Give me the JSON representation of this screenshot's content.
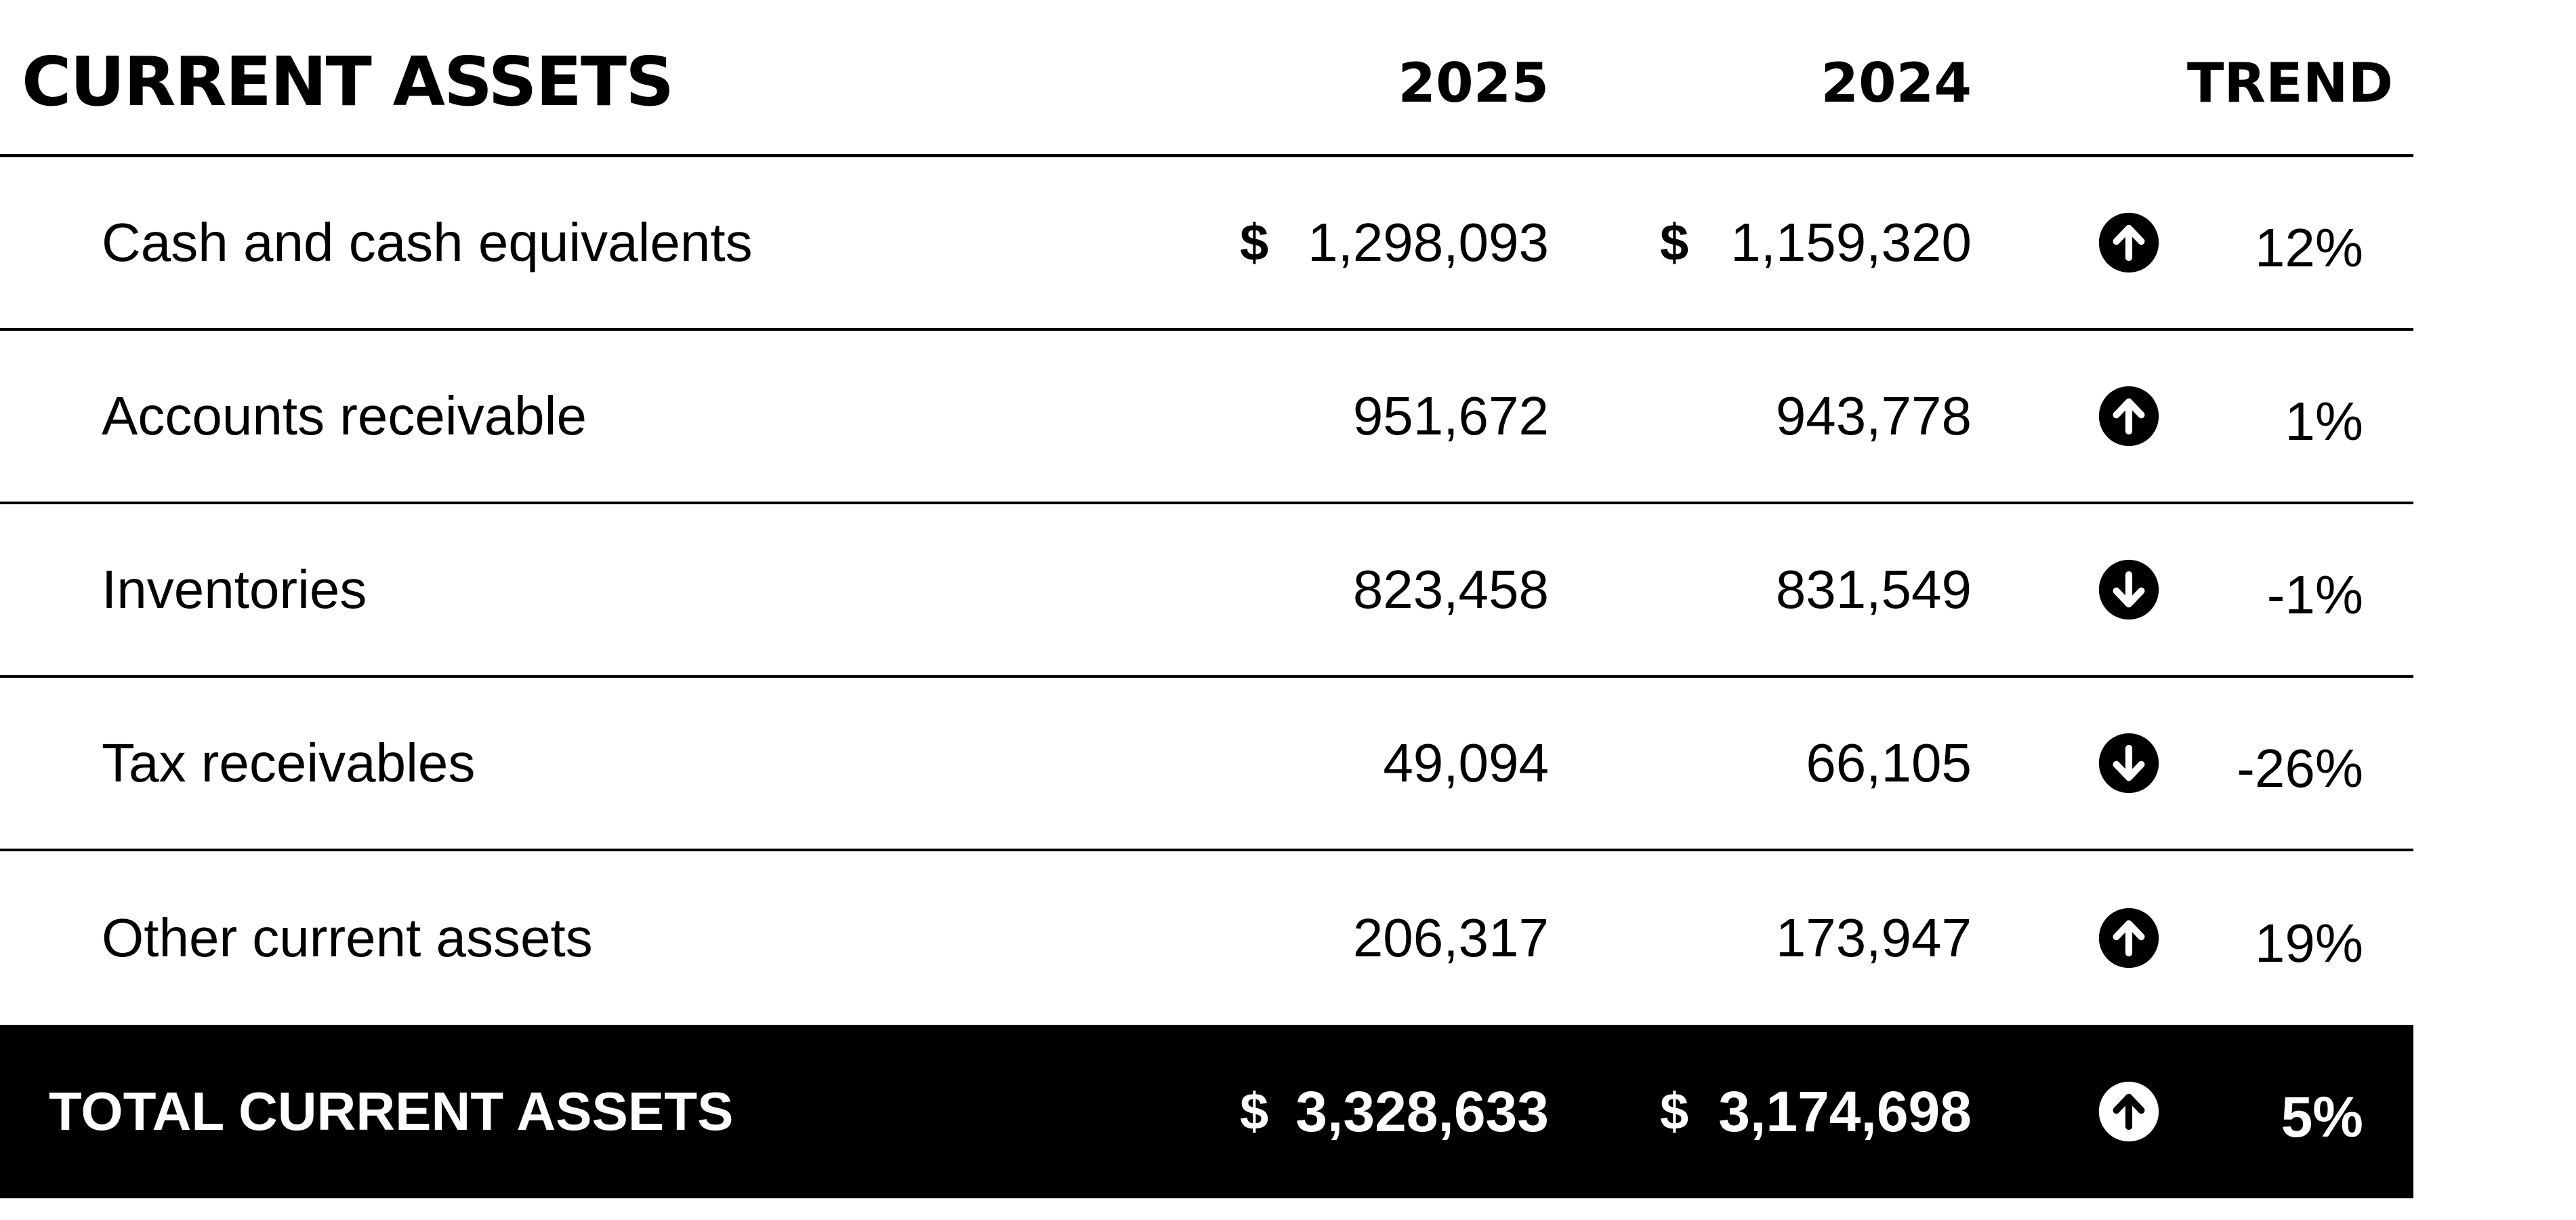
{
  "header": {
    "title": "CURRENT ASSETS",
    "col_2025": "2025",
    "col_2024": "2024",
    "col_trend": "TREND"
  },
  "rows": [
    {
      "label": "Cash and cash equivalents",
      "cur_2025": "$",
      "v2025": "1,298,093",
      "cur_2024": "$",
      "v2024": "1,159,320",
      "trend": "up",
      "pct": "12%"
    },
    {
      "label": "Accounts receivable",
      "cur_2025": "",
      "v2025": "951,672",
      "cur_2024": "",
      "v2024": "943,778",
      "trend": "up",
      "pct": "1%"
    },
    {
      "label": "Inventories",
      "cur_2025": "",
      "v2025": "823,458",
      "cur_2024": "",
      "v2024": "831,549",
      "trend": "down",
      "pct": "-1%"
    },
    {
      "label": "Tax receivables",
      "cur_2025": "",
      "v2025": "49,094",
      "cur_2024": "",
      "v2024": "66,105",
      "trend": "down",
      "pct": "-26%"
    },
    {
      "label": "Other current assets",
      "cur_2025": "",
      "v2025": "206,317",
      "cur_2024": "",
      "v2024": "173,947",
      "trend": "up",
      "pct": "19%"
    }
  ],
  "total": {
    "label": "TOTAL CURRENT ASSETS",
    "cur_2025": "$",
    "v2025": "3,328,633",
    "cur_2024": "$",
    "v2024": "3,174,698",
    "trend": "up",
    "pct": "5%"
  },
  "icons": {
    "up": "arrow-up-circle-icon",
    "down": "arrow-down-circle-icon"
  },
  "colors": {
    "text": "#000000",
    "background": "#ffffff",
    "total_bg": "#000000",
    "total_text": "#ffffff"
  }
}
